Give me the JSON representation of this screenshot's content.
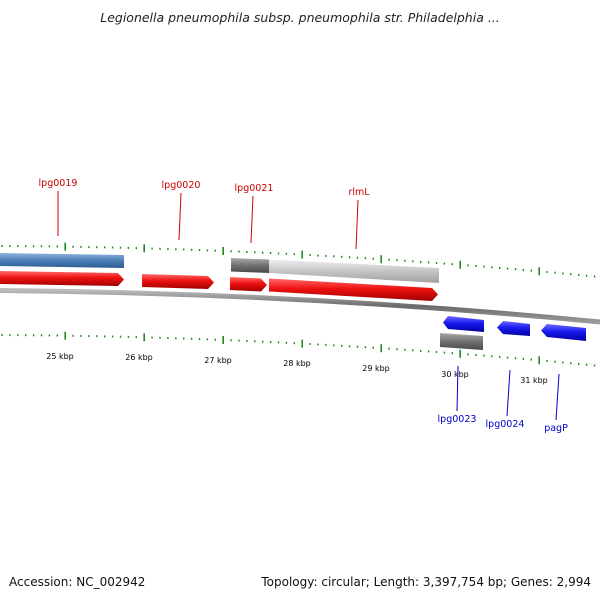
{
  "title": "Legionella pneumophila subsp. pneumophila str. Philadelphia ...",
  "footer": {
    "accession": "Accession: NC_002942",
    "summary": "Topology: circular; Length: 3,397,754 bp; Genes: 2,994"
  },
  "colors": {
    "forward_gene": "#ee1111",
    "reverse_gene": "#1a1aee",
    "forward_label": "#cc0000",
    "reverse_label": "#0000cc",
    "tick": "#228822",
    "backbone": "#777777",
    "steel_blue_feature": "#4a80b8",
    "grey_feature": "#7a7a7a",
    "light_grey_feature": "#c4c4c4"
  },
  "scale": {
    "unit": "kbp",
    "ticks": [
      "25 kbp",
      "26 kbp",
      "27 kbp",
      "28 kbp",
      "29 kbp",
      "30 kbp",
      "31 kbp"
    ]
  },
  "genes": {
    "forward": [
      "lpg0019",
      "lpg0020",
      "lpg0021",
      "rlmL"
    ],
    "reverse": [
      "lpg0023",
      "lpg0024",
      "pagP"
    ]
  }
}
